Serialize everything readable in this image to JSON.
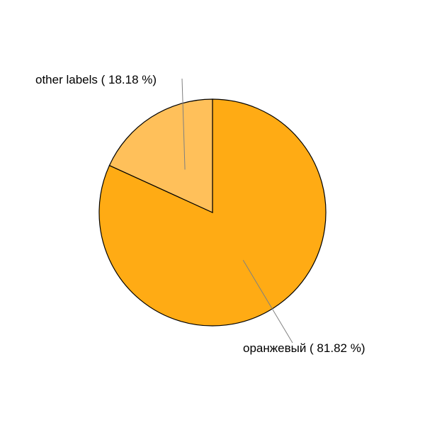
{
  "chart_data": {
    "type": "pie",
    "title": "",
    "start": "12 o'clock",
    "direction": "clockwise",
    "slices": [
      {
        "label": "оранжевый",
        "value": 81.82,
        "text": "оранжевый ( 81.82 %)",
        "color": "#ffab14"
      },
      {
        "label": "other labels",
        "value": 18.18,
        "text": "other labels ( 18.18 %)",
        "color": "#ffc05a"
      }
    ]
  }
}
